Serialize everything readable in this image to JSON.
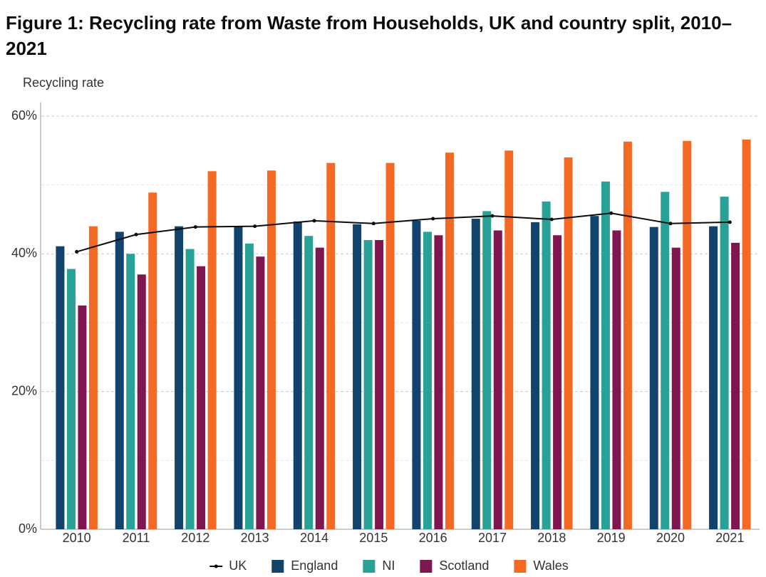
{
  "chart_data": {
    "type": "bar",
    "title": "Figure 1: Recycling rate from Waste from Households, UK and country split, 2010–2021",
    "y_label": "Recycling rate",
    "categories": [
      "2010",
      "2011",
      "2012",
      "2013",
      "2014",
      "2015",
      "2016",
      "2017",
      "2018",
      "2019",
      "2020",
      "2021"
    ],
    "series": [
      {
        "name": "UK",
        "type": "line",
        "color": "#0b0c0c",
        "values": [
          40.3,
          42.8,
          43.9,
          44.0,
          44.8,
          44.4,
          45.1,
          45.5,
          45.0,
          45.9,
          44.4,
          44.6
        ]
      },
      {
        "name": "England",
        "color": "#12436d",
        "values": [
          41.1,
          43.2,
          44.0,
          44.0,
          44.7,
          44.3,
          44.8,
          45.1,
          44.6,
          45.5,
          43.9,
          44.0
        ]
      },
      {
        "name": "NI",
        "color": "#28a197",
        "values": [
          37.8,
          40.0,
          40.7,
          41.5,
          42.6,
          42.0,
          43.2,
          46.2,
          47.6,
          50.5,
          49.0,
          48.3
        ]
      },
      {
        "name": "Scotland",
        "color": "#801650",
        "values": [
          32.5,
          37.0,
          38.2,
          39.6,
          40.9,
          42.0,
          42.7,
          43.4,
          42.7,
          43.4,
          40.9,
          41.6
        ]
      },
      {
        "name": "Wales",
        "color": "#f46a25",
        "values": [
          44.0,
          48.9,
          52.0,
          52.1,
          53.2,
          53.2,
          54.7,
          55.0,
          54.0,
          56.3,
          56.4,
          56.6
        ]
      }
    ],
    "ylim": [
      0,
      62
    ],
    "yticks": [
      {
        "value": 0,
        "label": "0%"
      },
      {
        "value": 20,
        "label": "20%"
      },
      {
        "value": 40,
        "label": "40%"
      },
      {
        "value": 60,
        "label": "60%"
      }
    ],
    "minor_yticks": [
      10,
      30,
      50
    ],
    "grid": true,
    "legend": "bottom"
  }
}
